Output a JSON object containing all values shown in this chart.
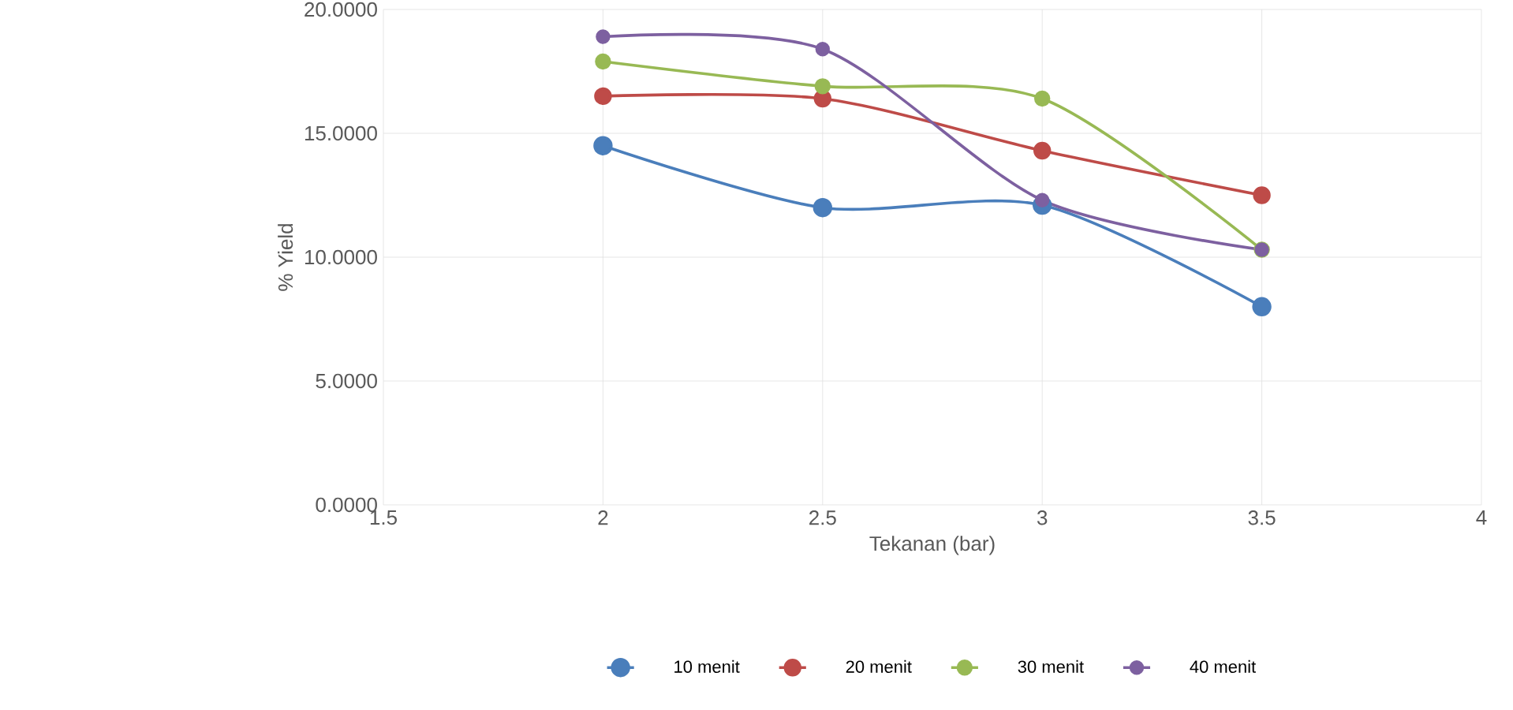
{
  "chart_data": {
    "type": "line",
    "xlabel": "Tekanan (bar)",
    "ylabel": "% Yield",
    "x": [
      2,
      2.5,
      3,
      3.5
    ],
    "xlim": [
      1.5,
      4
    ],
    "xticks": [
      1.5,
      2,
      2.5,
      3,
      3.5,
      4
    ],
    "ylim": [
      0,
      20
    ],
    "yticks": [
      {
        "value": 0,
        "label": "0.0000"
      },
      {
        "value": 5,
        "label": "5.0000"
      },
      {
        "value": 10,
        "label": "10.0000"
      },
      {
        "value": 15,
        "label": "15.0000"
      },
      {
        "value": 20,
        "label": "20.0000"
      }
    ],
    "grid": true,
    "legend": "bottom",
    "marker": "circle",
    "line_style": "solid",
    "series": [
      {
        "name": "10 menit",
        "color": "#4a7ebb",
        "values": [
          14.5,
          12.0,
          12.1,
          8.0
        ]
      },
      {
        "name": "20 menit",
        "color": "#be4b48",
        "values": [
          16.5,
          16.4,
          14.3,
          12.5
        ]
      },
      {
        "name": "30 menit",
        "color": "#98b954",
        "values": [
          17.9,
          16.9,
          16.4,
          10.3
        ]
      },
      {
        "name": "40 menit",
        "color": "#7d60a0",
        "values": [
          18.9,
          18.4,
          12.3,
          10.3
        ]
      }
    ]
  }
}
